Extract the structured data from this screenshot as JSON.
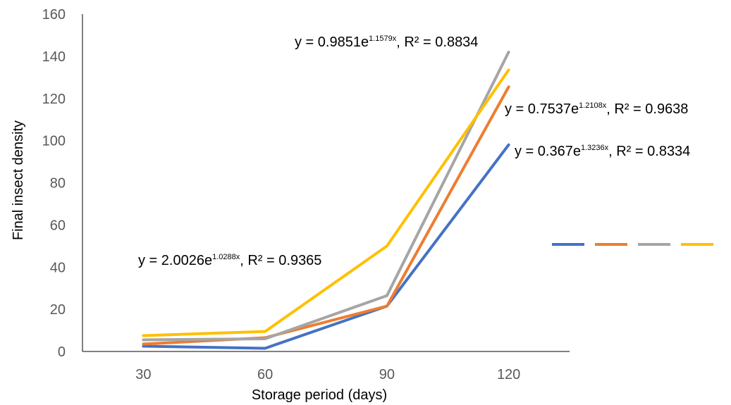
{
  "chart_data": {
    "type": "line",
    "xlabel": "Storage period (days)",
    "ylabel": "Final insect density",
    "categories": [
      "30",
      "60",
      "90",
      "120"
    ],
    "ylim": [
      0,
      160
    ],
    "yticks": [
      0,
      20,
      40,
      60,
      80,
      100,
      120,
      140,
      160
    ],
    "legend_placement": "right",
    "grid": false,
    "series": [
      {
        "color": "#4472C4",
        "values": [
          2.5,
          1.5,
          21.5,
          98
        ]
      },
      {
        "color": "#ED7D31",
        "values": [
          3.5,
          6.5,
          21.5,
          125.5
        ]
      },
      {
        "color": "#A5A5A5",
        "values": [
          5.5,
          6,
          26.5,
          142
        ]
      },
      {
        "color": "#FFC000",
        "values": [
          7.5,
          9.5,
          50,
          133.5
        ]
      }
    ],
    "annotations": [
      {
        "id": "eq1",
        "prefix": "y = 0.9851e",
        "exponent": "1.1579x",
        "suffix": ", R² = 0.8834"
      },
      {
        "id": "eq2",
        "prefix": "y = 0.7537e",
        "exponent": "1.2108x",
        "suffix": ", R² = 0.9638"
      },
      {
        "id": "eq3",
        "prefix": "y = 0.367e",
        "exponent": "1.3236x",
        "suffix": ", R² = 0.8334"
      },
      {
        "id": "eq4",
        "prefix": "y = 2.0026e",
        "exponent": "1.0288x",
        "suffix": ", R² = 0.9365"
      }
    ]
  }
}
